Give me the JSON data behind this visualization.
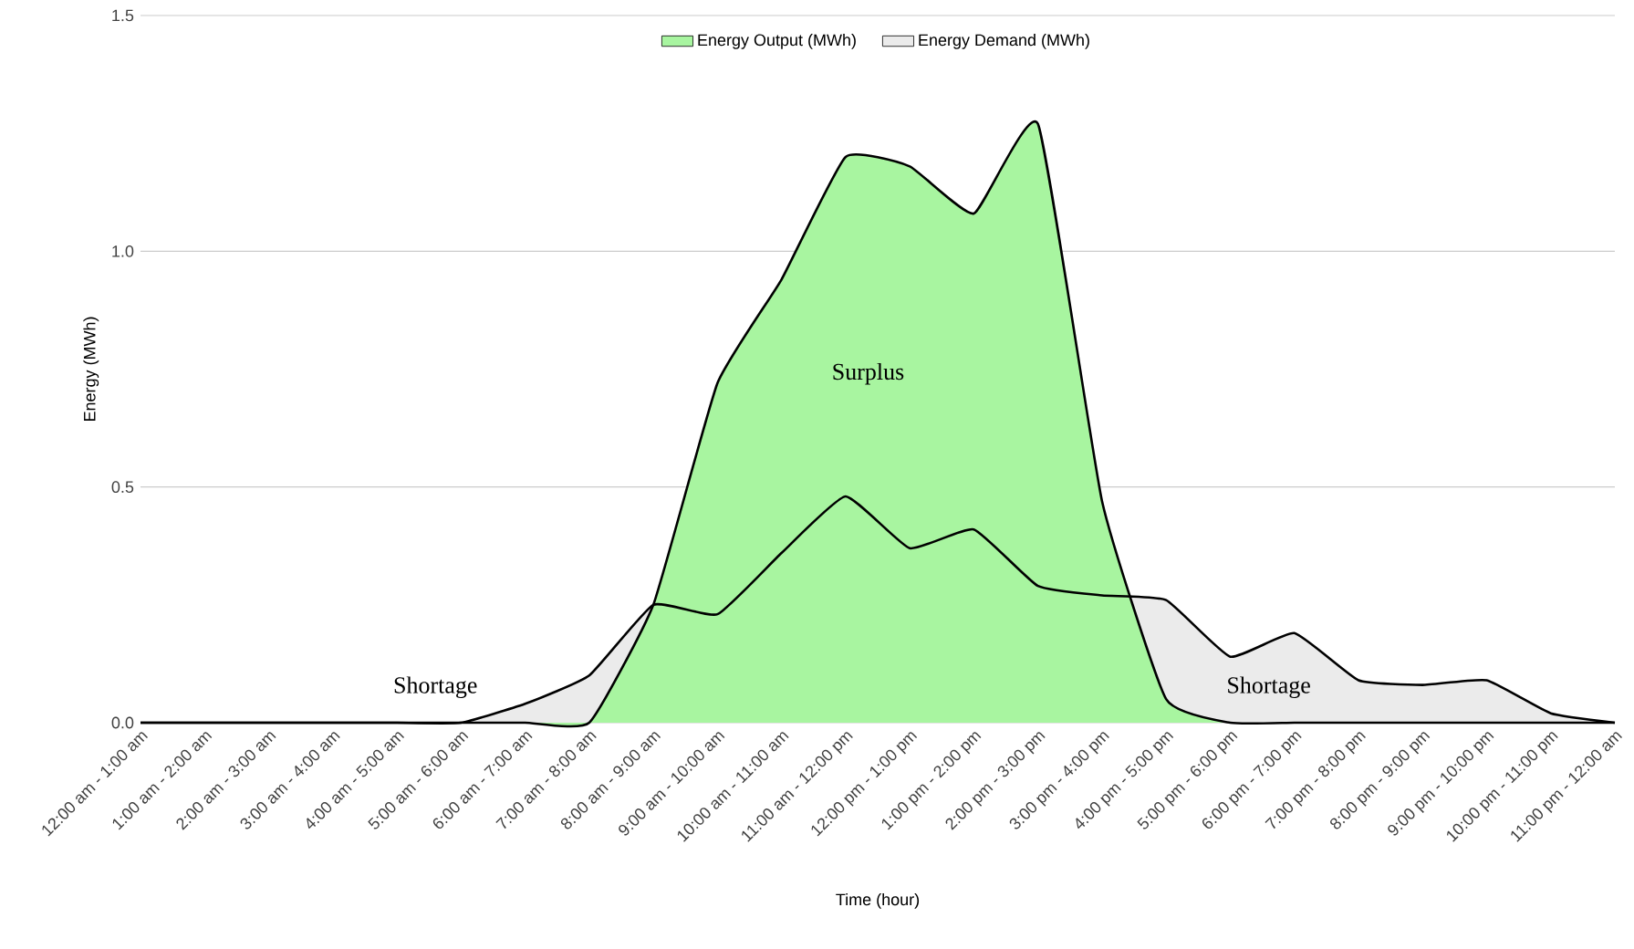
{
  "chart_data": {
    "type": "area",
    "xlabel": "Time (hour)",
    "ylabel": "Energy (MWh)",
    "categories": [
      "12:00 am - 1:00 am",
      "1:00 am - 2:00 am",
      "2:00 am - 3:00 am",
      "3:00 am - 4:00 am",
      "4:00 am - 5:00 am",
      "5:00 am - 6:00 am",
      "6:00 am - 7:00 am",
      "7:00 am - 8:00 am",
      "8:00 am - 9:00 am",
      "9:00 am - 10:00 am",
      "10:00 am - 11:00 am",
      "11:00 am - 12:00 pm",
      "12:00 pm - 1:00 pm",
      "1:00 pm - 2:00 pm",
      "2:00 pm - 3:00 pm",
      "3:00 pm - 4:00 pm",
      "4:00 pm - 5:00 pm",
      "5:00 pm - 6:00 pm",
      "6:00 pm - 7:00 pm",
      "7:00 pm - 8:00 pm",
      "8:00 pm - 9:00 pm",
      "9:00 pm - 10:00 pm",
      "10:00 pm - 11:00 pm",
      "11:00 pm - 12:00 am"
    ],
    "series": [
      {
        "name": "Energy Output (MWh)",
        "color": "#a8f5a0",
        "values": [
          0,
          0,
          0,
          0,
          0,
          0,
          0,
          0,
          0.25,
          0.72,
          0.94,
          1.2,
          1.18,
          1.08,
          1.27,
          0.47,
          0.05,
          0,
          0,
          0,
          0,
          0,
          0,
          0
        ]
      },
      {
        "name": "Energy Demand (MWh)",
        "color": "#ebebeb",
        "values": [
          0,
          0,
          0,
          0,
          0,
          0,
          0.04,
          0.1,
          0.25,
          0.23,
          0.36,
          0.48,
          0.37,
          0.41,
          0.29,
          0.27,
          0.26,
          0.14,
          0.19,
          0.09,
          0.08,
          0.09,
          0.02,
          0
        ]
      }
    ],
    "ylim": [
      0,
      1.5
    ],
    "yticks": [
      {
        "value": 0,
        "label": "0.0"
      },
      {
        "value": 0.5,
        "label": "0.5"
      },
      {
        "value": 1.0,
        "label": "1.0"
      },
      {
        "value": 1.5,
        "label": "1.5"
      }
    ],
    "grid": "y",
    "legend": "top",
    "annotations": [
      "Surplus",
      "Shortage",
      "Shortage"
    ]
  }
}
